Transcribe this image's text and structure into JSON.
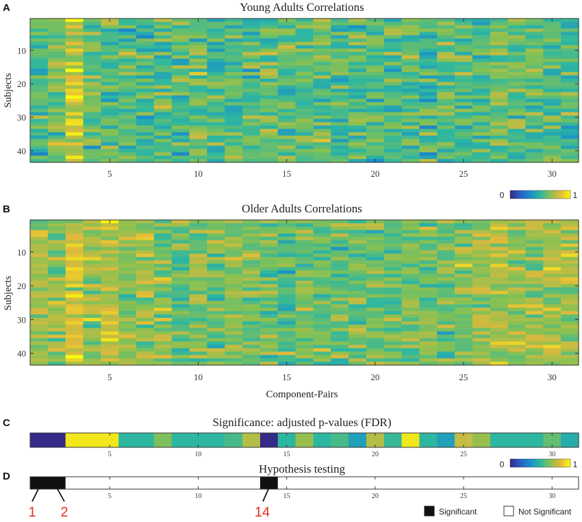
{
  "panels": {
    "A": {
      "letter": "A",
      "title": "Young Adults Correlations",
      "ylabel": "Subjects",
      "yticks": [
        "10",
        "20",
        "30",
        "40"
      ],
      "xticks": [
        "5",
        "10",
        "15",
        "20",
        "25",
        "30"
      ]
    },
    "B": {
      "letter": "B",
      "title": "Older Adults Correlations",
      "ylabel": "Subjects",
      "yticks": [
        "10",
        "20",
        "30",
        "40"
      ],
      "xticks": [
        "5",
        "10",
        "15",
        "20",
        "25",
        "30"
      ],
      "xlabel": "Component-Pairs"
    },
    "C": {
      "letter": "C",
      "title": "Significance: adjusted p-values (FDR)",
      "xticks": [
        "5",
        "10",
        "15",
        "20",
        "25",
        "30"
      ]
    },
    "D": {
      "letter": "D",
      "title": "Hypothesis testing",
      "xticks": [
        "5",
        "10",
        "15",
        "20",
        "25",
        "30"
      ],
      "callouts": [
        "1",
        "2",
        "14"
      ],
      "legend_significant": "Significant",
      "legend_not_significant": "Not Significant"
    }
  },
  "colorbar": {
    "min_label": "0",
    "max_label": "1"
  },
  "colors": {
    "viridis_stops": [
      "#352a87",
      "#2a5ec8",
      "#1a8fca",
      "#2eb7a0",
      "#86c153",
      "#e2b93b",
      "#f9fb0e"
    ],
    "significant": "#111111",
    "not_significant": "#ffffff",
    "callout": "#e0301e"
  },
  "chart_data": [
    {
      "type": "heatmap",
      "id": "A",
      "title": "Young Adults Correlations",
      "xlabel": "",
      "ylabel": "Subjects",
      "n_cols": 31,
      "n_rows": 43,
      "xlim": [
        0.5,
        31.5
      ],
      "ylim": [
        0.5,
        43.5
      ],
      "color_range": [
        0,
        1
      ],
      "column_means": [
        0.55,
        0.62,
        0.82,
        0.58,
        0.6,
        0.57,
        0.55,
        0.58,
        0.56,
        0.62,
        0.54,
        0.57,
        0.56,
        0.6,
        0.55,
        0.57,
        0.6,
        0.56,
        0.58,
        0.57,
        0.55,
        0.58,
        0.56,
        0.6,
        0.57,
        0.58,
        0.62,
        0.6,
        0.58,
        0.57,
        0.55
      ],
      "note": "cell values are dense per-subject correlations; approximated from column means"
    },
    {
      "type": "heatmap",
      "id": "B",
      "title": "Older Adults Correlations",
      "xlabel": "Component-Pairs",
      "ylabel": "Subjects",
      "n_cols": 31,
      "n_rows": 43,
      "xlim": [
        0.5,
        31.5
      ],
      "ylim": [
        0.5,
        43.5
      ],
      "color_range": [
        0,
        1
      ],
      "column_means": [
        0.72,
        0.7,
        0.8,
        0.72,
        0.76,
        0.68,
        0.7,
        0.7,
        0.62,
        0.66,
        0.64,
        0.66,
        0.62,
        0.6,
        0.58,
        0.62,
        0.6,
        0.62,
        0.64,
        0.62,
        0.6,
        0.64,
        0.64,
        0.62,
        0.66,
        0.7,
        0.74,
        0.72,
        0.7,
        0.72,
        0.72
      ],
      "note": "cell values are dense per-subject correlations; approximated from column means"
    },
    {
      "type": "heatmap",
      "id": "C",
      "title": "Significance: adjusted p-values (FDR)",
      "n_cols": 31,
      "xlim": [
        0.5,
        31.5
      ],
      "color_range": [
        0,
        1
      ],
      "values": [
        0.0,
        0.0,
        0.95,
        0.95,
        0.95,
        0.5,
        0.5,
        0.65,
        0.5,
        0.5,
        0.5,
        0.55,
        0.75,
        0.0,
        0.5,
        0.7,
        0.5,
        0.55,
        0.4,
        0.75,
        0.52,
        0.95,
        0.5,
        0.4,
        0.78,
        0.7,
        0.5,
        0.5,
        0.5,
        0.6,
        0.45
      ]
    },
    {
      "type": "heatmap",
      "id": "D",
      "title": "Hypothesis testing",
      "n_cols": 31,
      "xlim": [
        0.5,
        31.5
      ],
      "significant_pairs": [
        1,
        2,
        14
      ],
      "legend": [
        "Significant",
        "Not Significant"
      ]
    }
  ]
}
